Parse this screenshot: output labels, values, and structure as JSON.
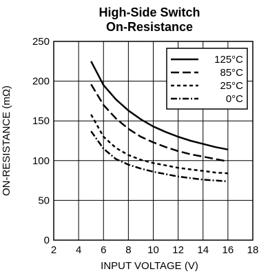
{
  "chart_data": {
    "type": "line",
    "title": [
      "High-Side Switch",
      "On-Resistance"
    ],
    "xlabel": "INPUT VOLTAGE (V)",
    "ylabel": "ON-RESISTANCE (mΩ)",
    "xlim": [
      2,
      18
    ],
    "ylim": [
      0,
      250
    ],
    "xticks": [
      2,
      4,
      6,
      8,
      10,
      12,
      14,
      16,
      18
    ],
    "yticks": [
      0,
      50,
      100,
      150,
      200,
      250
    ],
    "xticklabels": [
      "2",
      "4",
      "6",
      "8",
      "10",
      "12",
      "14",
      "16",
      "18"
    ],
    "yticklabels": [
      "0",
      "50",
      "100",
      "150",
      "200",
      "250"
    ],
    "grid": true,
    "legend_position": "top-right",
    "series": [
      {
        "name": "125°C",
        "style": "solid",
        "x": [
          5,
          6,
          7,
          8,
          9,
          10,
          11,
          12,
          13,
          14,
          15,
          16
        ],
        "y": [
          225,
          195,
          177,
          163,
          152,
          143,
          136,
          130,
          125,
          121,
          117,
          114
        ]
      },
      {
        "name": "85°C",
        "style": "long-dash",
        "x": [
          5,
          6,
          7,
          8,
          9,
          10,
          11,
          12,
          13,
          14,
          15,
          16
        ],
        "y": [
          196,
          170,
          153,
          140,
          130,
          123,
          117,
          112,
          108,
          105,
          102,
          99
        ]
      },
      {
        "name": "25°C",
        "style": "short-dash",
        "x": [
          5,
          6,
          7,
          8,
          9,
          10,
          11,
          12,
          13,
          14,
          15,
          16
        ],
        "y": [
          158,
          130,
          116,
          107,
          101,
          97,
          94,
          91,
          89,
          87,
          85,
          84
        ]
      },
      {
        "name": "0°C",
        "style": "dash-dot",
        "x": [
          5,
          6,
          7,
          8,
          9,
          10,
          11,
          12,
          13,
          14,
          15,
          16
        ],
        "y": [
          137,
          115,
          102,
          95,
          90,
          86,
          83,
          80,
          78,
          76,
          75,
          74
        ]
      }
    ]
  }
}
